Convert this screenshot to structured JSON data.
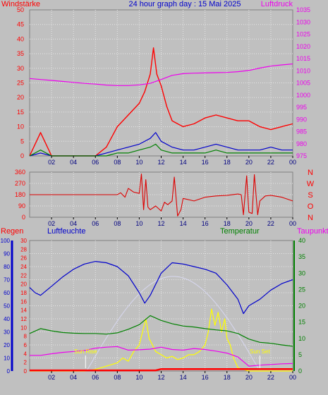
{
  "colors": {
    "background": "#c0c0c0",
    "plot_background": "#c0c0c0",
    "grid": "#e6e6e6",
    "wind_gust": "#ff0000",
    "wind_avg": "#0000cc",
    "wind_min": "#008000",
    "pressure": "#ee00ee",
    "direction": "#dd0000",
    "rain": "#ff0000",
    "humidity": "#0000cc",
    "temperature": "#008000",
    "dewpoint": "#ee00ee",
    "solar": "#ffff00",
    "uv_daylight": "#ffffff"
  },
  "chart_data": [
    {
      "type": "line",
      "title": "24 hour graph day : 15 Mai 2025",
      "ylabel_left": "Windstärke",
      "ylabel_right": "Luftdruck",
      "left_ticks": [
        "0",
        "5",
        "10",
        "15",
        "20",
        "25",
        "30",
        "35",
        "40",
        "45",
        "50"
      ],
      "left_range": [
        0,
        50
      ],
      "right_ticks": [
        "975",
        "980",
        "985",
        "990",
        "995",
        "1000",
        "1005",
        "1010",
        "1015",
        "1020",
        "1025",
        "1030",
        "1035"
      ],
      "right_range": [
        975,
        1035
      ],
      "x_ticks": [
        "02",
        "04",
        "06",
        "08",
        "10",
        "12",
        "14",
        "16",
        "18",
        "20",
        "22",
        "00"
      ],
      "x_range_hours": [
        0,
        24
      ],
      "grid": true,
      "series": [
        {
          "key": "pressure",
          "axis": "right",
          "x": [
            0,
            1,
            2,
            3,
            4,
            5,
            6,
            7,
            8,
            9,
            10,
            11,
            12,
            13,
            14,
            15,
            16,
            17,
            18,
            19,
            20,
            21,
            22,
            23,
            24
          ],
          "y": [
            1006.8,
            1006.4,
            1006.0,
            1005.6,
            1005.2,
            1004.8,
            1004.5,
            1004.1,
            1003.9,
            1003.9,
            1004.2,
            1004.8,
            1006.4,
            1008.1,
            1008.8,
            1009.0,
            1009.1,
            1009.2,
            1009.3,
            1009.6,
            1010.1,
            1011.1,
            1011.9,
            1012.4,
            1012.8
          ]
        },
        {
          "key": "gust",
          "axis": "left",
          "x": [
            0,
            1,
            2,
            3,
            4,
            5,
            6,
            7,
            8,
            9,
            10,
            10.5,
            11,
            11.3,
            11.6,
            12,
            12.5,
            13,
            14,
            15,
            16,
            17,
            18,
            19,
            20,
            21,
            22,
            23,
            24
          ],
          "y": [
            0,
            8,
            0,
            0,
            0,
            0,
            0,
            3,
            10,
            14,
            18,
            22,
            28,
            37,
            28,
            24,
            17,
            12,
            10,
            11,
            13,
            14,
            13,
            12,
            12,
            10,
            9,
            10,
            11
          ]
        },
        {
          "key": "average",
          "axis": "left",
          "x": [
            0,
            1,
            2,
            3,
            4,
            5,
            6,
            7,
            8,
            9,
            10,
            11,
            11.5,
            12,
            13,
            14,
            15,
            16,
            17,
            18,
            19,
            20,
            21,
            22,
            23,
            24
          ],
          "y": [
            0,
            1,
            0,
            0,
            0,
            0,
            0,
            1,
            2,
            3,
            4,
            6,
            8,
            5,
            3,
            2,
            2,
            3,
            4,
            3,
            2,
            2,
            2,
            3,
            2,
            2
          ]
        },
        {
          "key": "minimum",
          "axis": "left",
          "x": [
            0,
            1,
            2,
            3,
            4,
            5,
            6,
            7,
            8,
            9,
            10,
            11,
            11.5,
            12,
            13,
            14,
            15,
            16,
            17,
            18,
            19,
            20,
            21,
            22,
            23,
            24
          ],
          "y": [
            0,
            2,
            0,
            0,
            0,
            0,
            0,
            0,
            1,
            1,
            2,
            3,
            4,
            2,
            1,
            1,
            1,
            1,
            2,
            1,
            1,
            1,
            1,
            1,
            1,
            1
          ]
        }
      ]
    },
    {
      "type": "line",
      "ylabel_right_letters": [
        "N",
        "W",
        "S",
        "O",
        "N"
      ],
      "left_ticks": [
        "0",
        "90",
        "180",
        "270",
        "360"
      ],
      "left_range": [
        0,
        360
      ],
      "x_ticks": [
        "02",
        "04",
        "06",
        "08",
        "10",
        "12",
        "14",
        "16",
        "18",
        "20",
        "22",
        "00"
      ],
      "x_range_hours": [
        0,
        24
      ],
      "grid": true,
      "series": [
        {
          "key": "direction",
          "x": [
            0,
            2,
            4,
            6,
            7,
            8,
            8.3,
            8.7,
            9,
            9.5,
            10,
            10.2,
            10.4,
            10.6,
            10.8,
            11,
            11.5,
            12,
            12.3,
            12.6,
            13,
            13.2,
            13.5,
            13.8,
            14,
            15,
            16,
            17,
            18,
            19,
            19.3,
            19.5,
            19.8,
            20,
            20.3,
            20.5,
            20.8,
            21,
            21.5,
            22,
            23,
            24
          ],
          "y": [
            180,
            180,
            180,
            180,
            180,
            180,
            195,
            160,
            230,
            200,
            190,
            345,
            60,
            300,
            80,
            60,
            90,
            50,
            120,
            100,
            130,
            320,
            10,
            60,
            150,
            130,
            160,
            170,
            175,
            185,
            180,
            20,
            330,
            40,
            30,
            340,
            20,
            130,
            170,
            175,
            160,
            130
          ]
        }
      ]
    },
    {
      "type": "line",
      "labels": {
        "rain": "Regen",
        "humidity": "Luftfeuchte",
        "temperature": "Temperatur",
        "dewpoint": "Taupunkt"
      },
      "humidity_ticks": [
        "0",
        "10",
        "20",
        "30",
        "40",
        "50",
        "60",
        "70",
        "80",
        "90",
        "100"
      ],
      "humidity_range": [
        0,
        100
      ],
      "rain_ticks": [
        "0",
        "2",
        "4",
        "6",
        "8",
        "10",
        "12",
        "14",
        "16",
        "18",
        "20",
        "22",
        "24",
        "26",
        "28",
        "30"
      ],
      "rain_range": [
        0,
        30
      ],
      "temp_ticks": [
        "0",
        "5",
        "10",
        "15",
        "20",
        "25",
        "30",
        "35",
        "40"
      ],
      "temp_range": [
        0,
        40
      ],
      "x_ticks": [
        "02",
        "04",
        "06",
        "08",
        "10",
        "12",
        "14",
        "16",
        "18",
        "20",
        "22",
        "00"
      ],
      "x_range_hours": [
        0,
        24
      ],
      "grid": true,
      "annotations": [
        {
          "text": "Sun Rise",
          "hour": 5.1
        },
        {
          "text": "Sun Set",
          "hour": 21.0
        }
      ],
      "series": [
        {
          "key": "humidity",
          "axis": "humidity",
          "x": [
            0,
            0.5,
            1,
            2,
            3,
            4,
            5,
            6,
            7,
            8,
            9,
            10,
            10.5,
            11,
            12,
            13,
            14,
            15,
            16,
            17,
            18,
            19,
            19.5,
            20,
            21,
            22,
            23,
            24
          ],
          "y": [
            64,
            60,
            58,
            65,
            72,
            78,
            82,
            84,
            83,
            80,
            73,
            60,
            52,
            58,
            75,
            83,
            82,
            80,
            78,
            75,
            66,
            55,
            44,
            50,
            55,
            62,
            67,
            70
          ]
        },
        {
          "key": "temperature",
          "axis": "temp",
          "x": [
            0,
            1,
            2,
            3,
            4,
            5,
            6,
            7,
            8,
            9,
            10,
            11,
            12,
            13,
            14,
            15,
            16,
            17,
            18,
            19,
            20,
            21,
            22,
            23,
            24
          ],
          "y": [
            11.5,
            13.0,
            12.3,
            11.8,
            11.6,
            11.5,
            11.5,
            11.3,
            11.7,
            12.8,
            14.2,
            17.0,
            15.5,
            14.5,
            13.8,
            13.5,
            13.0,
            12.6,
            12.3,
            11.5,
            9.8,
            8.8,
            8.5,
            8.0,
            7.6
          ]
        },
        {
          "key": "dewpoint",
          "axis": "temp",
          "x": [
            0,
            1,
            2,
            3,
            4,
            5,
            6,
            7,
            8,
            9,
            10,
            11,
            12,
            13,
            14,
            15,
            16,
            17,
            18,
            19,
            20,
            21,
            22,
            23,
            24
          ],
          "y": [
            4.8,
            4.8,
            5.3,
            5.7,
            6.0,
            6.3,
            7.0,
            7.3,
            7.5,
            6.4,
            6.5,
            6.7,
            7.3,
            6.6,
            6.4,
            6.9,
            6.6,
            6.1,
            5.5,
            4.3,
            1.5,
            1.8,
            2.0,
            2.2,
            2.3
          ]
        },
        {
          "key": "solar",
          "axis": "temp",
          "x": [
            0,
            5,
            6,
            7,
            8,
            8.5,
            9,
            9.5,
            10,
            10.3,
            10.6,
            10.9,
            11.2,
            11.5,
            12,
            12.5,
            13,
            13.5,
            14,
            14.5,
            15,
            15.5,
            16,
            16.3,
            16.6,
            16.9,
            17.2,
            17.5,
            17.8,
            18,
            18.3,
            18.6,
            19,
            20,
            24
          ],
          "y": [
            0,
            0,
            0.5,
            1.5,
            2.5,
            4,
            3,
            6,
            8,
            12,
            16,
            10,
            8,
            6,
            5,
            4,
            4.5,
            3.5,
            4,
            5,
            5,
            6,
            8,
            12,
            19,
            14,
            18,
            12,
            16,
            10,
            8,
            4,
            1,
            0,
            0
          ]
        },
        {
          "key": "rain",
          "axis": "humidity",
          "x": [
            0,
            11.5,
            12,
            24
          ],
          "y": [
            0.5,
            0.5,
            1.5,
            1.5
          ]
        }
      ]
    }
  ]
}
